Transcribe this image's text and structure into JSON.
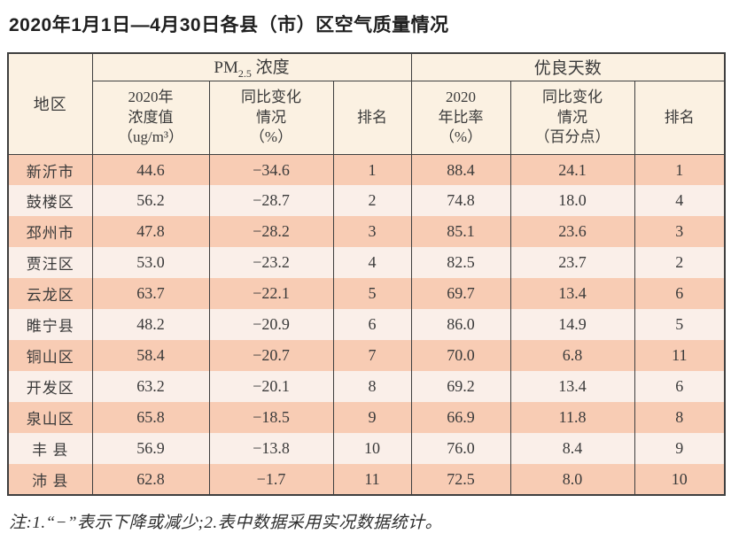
{
  "page": {
    "title": "2020年1月1日—4月30日各县（市）区空气质量情况",
    "note": "注:1.“−”表示下降或减少;2.表中数据采用实况数据统计。"
  },
  "table": {
    "headers": {
      "region": "地区",
      "pm_group": {
        "prefix": "PM",
        "sub": "2.5",
        "suffix": " 浓度"
      },
      "good_group": "优良天数",
      "pm_value": "2020年\n浓度值\n（ug/m³）",
      "pm_change": "同比变化\n情况\n（%）",
      "pm_rank": "排名",
      "good_rate": "2020\n年比率\n（%）",
      "good_change": "同比变化\n情况\n（百分点）",
      "good_rank": "排名"
    },
    "rows": [
      {
        "region": "新沂市",
        "pm_value": "44.6",
        "pm_change": "−34.6",
        "pm_rank": "1",
        "good_rate": "88.4",
        "good_change": "24.1",
        "good_rank": "1"
      },
      {
        "region": "鼓楼区",
        "pm_value": "56.2",
        "pm_change": "−28.7",
        "pm_rank": "2",
        "good_rate": "74.8",
        "good_change": "18.0",
        "good_rank": "4"
      },
      {
        "region": "邳州市",
        "pm_value": "47.8",
        "pm_change": "−28.2",
        "pm_rank": "3",
        "good_rate": "85.1",
        "good_change": "23.6",
        "good_rank": "3"
      },
      {
        "region": "贾汪区",
        "pm_value": "53.0",
        "pm_change": "−23.2",
        "pm_rank": "4",
        "good_rate": "82.5",
        "good_change": "23.7",
        "good_rank": "2"
      },
      {
        "region": "云龙区",
        "pm_value": "63.7",
        "pm_change": "−22.1",
        "pm_rank": "5",
        "good_rate": "69.7",
        "good_change": "13.4",
        "good_rank": "6"
      },
      {
        "region": "睢宁县",
        "pm_value": "48.2",
        "pm_change": "−20.9",
        "pm_rank": "6",
        "good_rate": "86.0",
        "good_change": "14.9",
        "good_rank": "5"
      },
      {
        "region": "铜山区",
        "pm_value": "58.4",
        "pm_change": "−20.7",
        "pm_rank": "7",
        "good_rate": "70.0",
        "good_change": "6.8",
        "good_rank": "11"
      },
      {
        "region": "开发区",
        "pm_value": "63.2",
        "pm_change": "−20.1",
        "pm_rank": "8",
        "good_rate": "69.2",
        "good_change": "13.4",
        "good_rank": "6"
      },
      {
        "region": "泉山区",
        "pm_value": "65.8",
        "pm_change": "−18.5",
        "pm_rank": "9",
        "good_rate": "66.9",
        "good_change": "11.8",
        "good_rank": "8"
      },
      {
        "region": "丰 县",
        "pm_value": "56.9",
        "pm_change": "−13.8",
        "pm_rank": "10",
        "good_rate": "76.0",
        "good_change": "8.4",
        "good_rank": "9"
      },
      {
        "region": "沛 县",
        "pm_value": "62.8",
        "pm_change": "−1.7",
        "pm_rank": "11",
        "good_rate": "72.5",
        "good_change": "8.0",
        "good_rank": "10"
      }
    ]
  },
  "colors": {
    "header_bg": "#fbf1e2",
    "row_dark": "#f8ccb4",
    "row_light": "#faefe9",
    "border": "#3f3f3f",
    "text": "#3a3a3a"
  }
}
